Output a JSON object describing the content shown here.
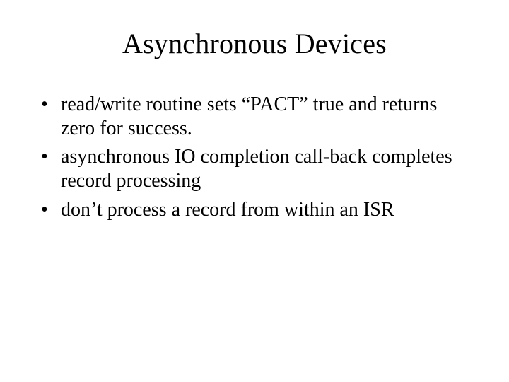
{
  "slide": {
    "title": "Asynchronous Devices",
    "bullets": [
      "read/write routine sets “PACT” true and returns zero for success.",
      "asynchronous IO completion call-back completes record processing",
      "don’t process a record from within an ISR"
    ],
    "background_color": "#ffffff",
    "text_color": "#000000",
    "title_fontsize": 40,
    "body_fontsize": 28,
    "font_family": "Times New Roman"
  }
}
